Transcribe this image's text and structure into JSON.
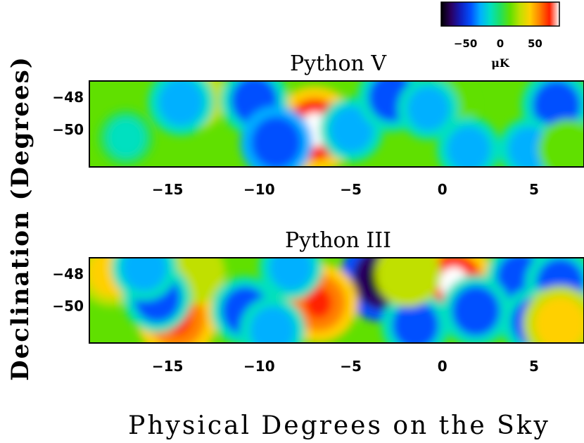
{
  "chart_data": {
    "type": "heatmap",
    "colorbar": {
      "tick_labels": [
        "−50",
        "0",
        "50"
      ],
      "tick_values": [
        -50,
        0,
        50
      ],
      "range": [
        -85,
        85
      ],
      "unit": "μK",
      "colormap": [
        "#000000",
        "#2a0060",
        "#1020c0",
        "#0050ff",
        "#00b0ff",
        "#00e0c0",
        "#20e060",
        "#60e000",
        "#c0e000",
        "#ffd000",
        "#ff8000",
        "#ff2000",
        "#ffffff"
      ]
    },
    "ylabel": "Declination (Degrees)",
    "xlabel": "Physical Degrees on the Sky",
    "panels": [
      {
        "title": "Python V",
        "xlim": [
          -19.5,
          7.5
        ],
        "ylim": [
          -52.3,
          -47.0
        ],
        "xticks": [
          -15,
          -10,
          -5,
          0,
          5
        ],
        "xtick_labels": [
          "−15",
          "−10",
          "−5",
          "0",
          "5"
        ],
        "yticks": [
          -48,
          -50
        ],
        "ytick_labels": [
          "−48",
          "−50"
        ],
        "features": [
          {
            "x": -7.2,
            "y": -50.0,
            "value": 85
          },
          {
            "x": -13.8,
            "y": -48.0,
            "value": 40
          },
          {
            "x": 0.0,
            "y": -48.5,
            "value": 25
          },
          {
            "x": -14.5,
            "y": -48.3,
            "value": -40
          },
          {
            "x": -10.5,
            "y": -48.2,
            "value": -45
          },
          {
            "x": -9.3,
            "y": -50.8,
            "value": -55
          },
          {
            "x": -5.2,
            "y": -50.0,
            "value": -35
          },
          {
            "x": -3.0,
            "y": -48.0,
            "value": -45
          },
          {
            "x": -1.0,
            "y": -48.7,
            "value": -30
          },
          {
            "x": 6.0,
            "y": -48.5,
            "value": -50
          },
          {
            "x": 1.2,
            "y": -51.2,
            "value": -35
          },
          {
            "x": 4.5,
            "y": -51.2,
            "value": -30
          },
          {
            "x": -17.5,
            "y": -50.5,
            "value": -15
          },
          {
            "x": 6.6,
            "y": -51.2,
            "value": 25
          }
        ]
      },
      {
        "title": "Python III",
        "xlim": [
          -19.5,
          7.5
        ],
        "ylim": [
          -52.3,
          -47.0
        ],
        "xticks": [
          -15,
          -10,
          -5,
          0,
          5
        ],
        "xtick_labels": [
          "−15",
          "−10",
          "−5",
          "0",
          "5"
        ],
        "yticks": [
          -48,
          -50
        ],
        "ytick_labels": [
          "−48",
          "−50"
        ],
        "features": [
          {
            "x": -3.5,
            "y": -48.3,
            "value": -85
          },
          {
            "x": -14.7,
            "y": -50.8,
            "value": 75
          },
          {
            "x": -7.0,
            "y": -49.8,
            "value": 70
          },
          {
            "x": 0.4,
            "y": -48.6,
            "value": 80
          },
          {
            "x": -18.3,
            "y": -47.9,
            "value": 45
          },
          {
            "x": -13.8,
            "y": -47.9,
            "value": 35
          },
          {
            "x": -11.0,
            "y": -50.3,
            "value": -45
          },
          {
            "x": -9.5,
            "y": -51.5,
            "value": -40
          },
          {
            "x": -15.8,
            "y": -49.5,
            "value": -45
          },
          {
            "x": -16.5,
            "y": -47.6,
            "value": -40
          },
          {
            "x": 4.0,
            "y": -48.2,
            "value": -45
          },
          {
            "x": 6.2,
            "y": -48.6,
            "value": -50
          },
          {
            "x": 1.6,
            "y": -50.3,
            "value": -50
          },
          {
            "x": -1.7,
            "y": -51.2,
            "value": -45
          },
          {
            "x": 4.8,
            "y": -51.0,
            "value": -45
          },
          {
            "x": 6.2,
            "y": -51.1,
            "value": 60
          },
          {
            "x": -2.1,
            "y": -48.0,
            "value": 40
          },
          {
            "x": -8.5,
            "y": -47.6,
            "value": -35
          }
        ]
      }
    ]
  }
}
